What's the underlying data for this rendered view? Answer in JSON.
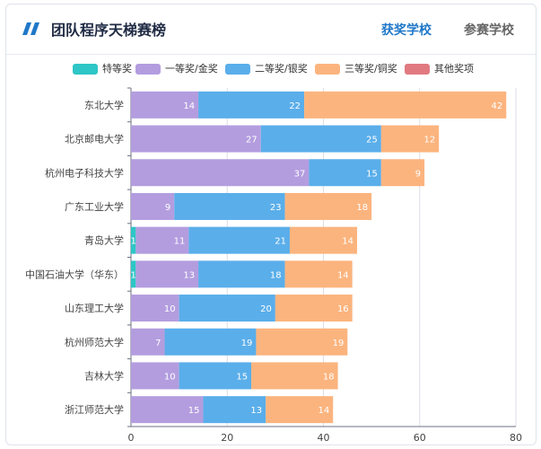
{
  "header": {
    "title": "团队程序天梯赛榜",
    "tabs": [
      {
        "label": "获奖学校",
        "active": true
      },
      {
        "label": "参赛学校",
        "active": false
      }
    ]
  },
  "colors": {
    "special": "#2ec6c6",
    "first": "#b39ddf",
    "second": "#5aaeea",
    "third": "#fbb47e",
    "other": "#e07a80",
    "accent": "#1f78c8"
  },
  "chart_data": {
    "type": "bar",
    "orientation": "horizontal",
    "stacked": true,
    "categories": [
      "东北大学",
      "北京邮电大学",
      "杭州电子科技大学",
      "广东工业大学",
      "青岛大学",
      "中国石油大学（华东）",
      "山东理工大学",
      "杭州师范大学",
      "吉林大学",
      "浙江师范大学"
    ],
    "series": [
      {
        "name": "特等奖",
        "values": [
          0,
          0,
          0,
          0,
          1,
          1,
          0,
          0,
          0,
          0
        ]
      },
      {
        "name": "一等奖/金奖",
        "values": [
          14,
          27,
          37,
          9,
          11,
          13,
          10,
          7,
          10,
          15
        ]
      },
      {
        "name": "二等奖/银奖",
        "values": [
          22,
          25,
          15,
          23,
          21,
          18,
          20,
          19,
          15,
          13
        ]
      },
      {
        "name": "三等奖/铜奖",
        "values": [
          42,
          12,
          9,
          18,
          14,
          14,
          16,
          19,
          18,
          14
        ]
      },
      {
        "name": "其他奖项",
        "values": [
          0,
          0,
          0,
          0,
          0,
          0,
          0,
          0,
          0,
          0
        ]
      }
    ],
    "xlim": [
      0,
      80
    ],
    "xticks": [
      0,
      20,
      40,
      60,
      80
    ],
    "grid": true,
    "legend_position": "top"
  }
}
